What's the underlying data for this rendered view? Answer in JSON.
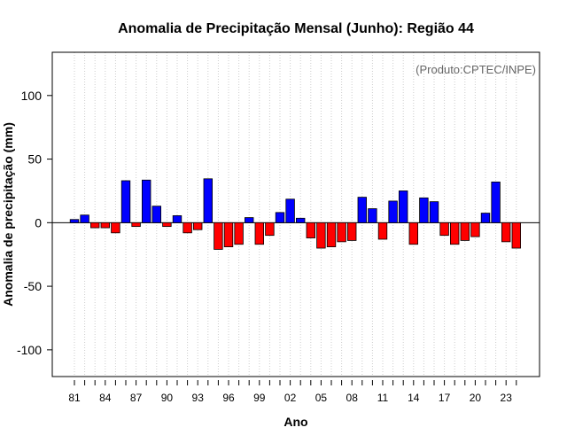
{
  "chart_data": {
    "type": "bar",
    "title": "Anomalia de Precipitação Mensal (Junho): Região 44",
    "xlabel": "Ano",
    "ylabel": "Anomalia de precipitação (mm)",
    "annotation": "(Produto:CPTEC/INPE)",
    "ylim": [
      -121,
      134
    ],
    "yticks": [
      -100,
      -50,
      0,
      50,
      100
    ],
    "grid": true,
    "colors": {
      "positive": "#0000ff",
      "negative": "#ff0000"
    },
    "x": [
      1981,
      1982,
      1983,
      1984,
      1985,
      1986,
      1987,
      1988,
      1989,
      1990,
      1991,
      1992,
      1993,
      1994,
      1995,
      1996,
      1997,
      1998,
      1999,
      2000,
      2001,
      2002,
      2003,
      2004,
      2005,
      2006,
      2007,
      2008,
      2009,
      2010,
      2011,
      2012,
      2013,
      2014,
      2015,
      2016,
      2017,
      2018,
      2019,
      2020,
      2021,
      2022,
      2023,
      2024
    ],
    "values": [
      2.5,
      6,
      -4,
      -4,
      -8,
      33,
      -3,
      33.5,
      13,
      -3,
      5.5,
      -8,
      -5.5,
      34.5,
      -21,
      -19,
      -17,
      4,
      -17,
      -10,
      8,
      18.5,
      3.5,
      -12,
      -20,
      -19,
      -15,
      -14,
      20,
      11,
      -13,
      17,
      25,
      -17,
      19.5,
      16.5,
      -10,
      -17,
      -14,
      -11,
      7.5,
      32,
      -15,
      -20
    ],
    "tick_labels": [
      "81",
      "84",
      "87",
      "90",
      "93",
      "96",
      "99",
      "02",
      "05",
      "08",
      "11",
      "14",
      "17",
      "20",
      "23"
    ]
  }
}
